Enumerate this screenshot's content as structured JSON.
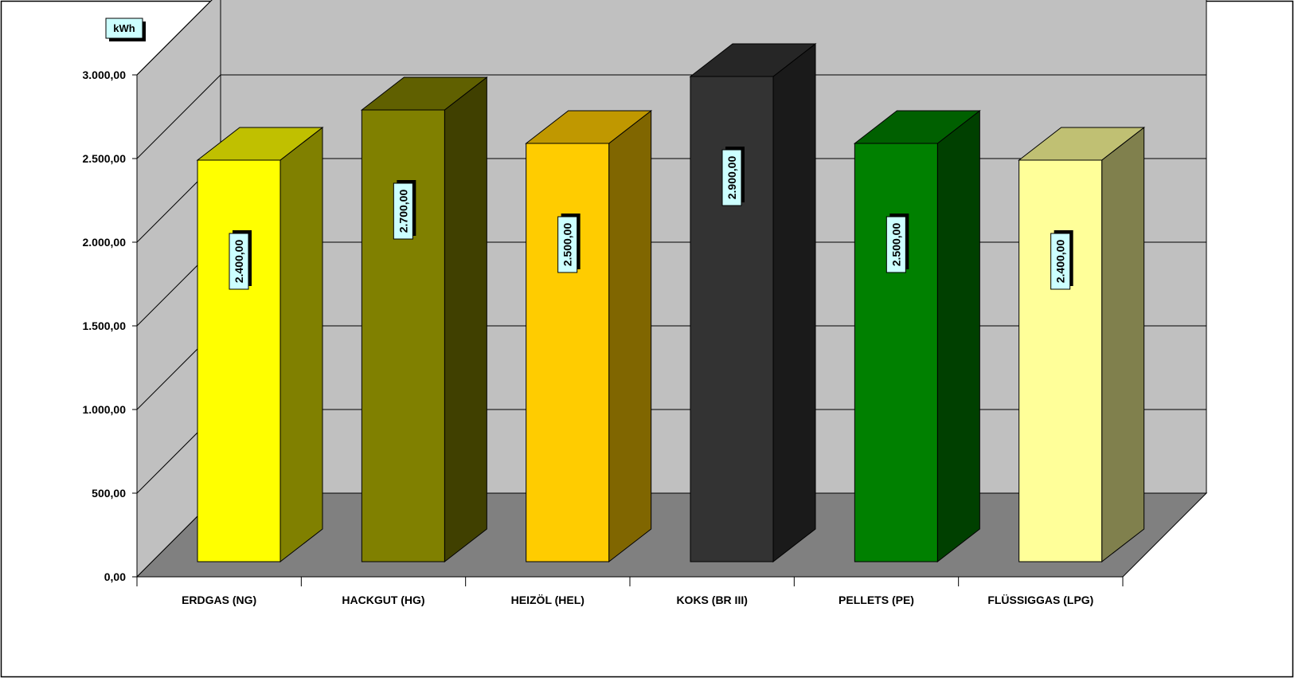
{
  "chart_data": {
    "type": "bar",
    "unit_label": "kWh",
    "categories": [
      "ERDGAS (NG)",
      "HACKGUT (HG)",
      "HEIZÖL (HEL)",
      "KOKS (BR III)",
      "PELLETS (PE)",
      "FLÜSSIGGAS (LPG)"
    ],
    "values": [
      2400,
      2700,
      2500,
      2900,
      2500,
      2400
    ],
    "data_labels": [
      "2.400,00",
      "2.700,00",
      "2.500,00",
      "2.900,00",
      "2.500,00",
      "2.400,00"
    ],
    "ylim": [
      0,
      3000
    ],
    "y_ticks": [
      0,
      500,
      1000,
      1500,
      2000,
      2500,
      3000
    ],
    "y_tick_labels": [
      "0,00",
      "500,00",
      "1.000,00",
      "1.500,00",
      "2.000,00",
      "2.500,00",
      "3.000,00"
    ],
    "grid": true,
    "bar_colors": [
      {
        "front": "#ffff00",
        "top": "#c0c000",
        "side": "#808000"
      },
      {
        "front": "#808000",
        "top": "#606000",
        "side": "#404000"
      },
      {
        "front": "#ffcc00",
        "top": "#c09800",
        "side": "#806600"
      },
      {
        "front": "#333333",
        "top": "#262626",
        "side": "#1a1a1a"
      },
      {
        "front": "#008000",
        "top": "#006000",
        "side": "#004000"
      },
      {
        "front": "#ffff99",
        "top": "#c0c073",
        "side": "#80804d"
      }
    ],
    "colors": {
      "wall": "#c0c0c0",
      "floor": "#808080",
      "label_box": "#ccffff"
    }
  }
}
